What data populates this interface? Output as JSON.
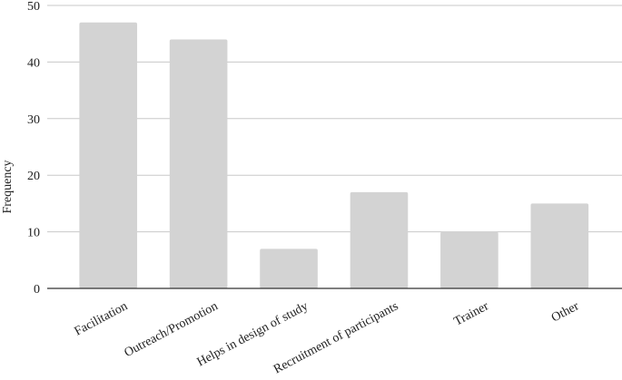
{
  "chart_data": {
    "type": "bar",
    "y_label": "Frequency",
    "categories": [
      "Facilitation",
      "Outreach/Promotion",
      "Helps in design of study",
      "Recruitment of participants",
      "Trainer",
      "Other"
    ],
    "values": [
      47,
      44,
      7,
      17,
      10,
      15
    ],
    "color": "#d3d3d3",
    "ylim": [
      0,
      50
    ],
    "yticks": [
      0,
      10,
      20,
      30,
      40,
      50
    ],
    "grid": true
  }
}
